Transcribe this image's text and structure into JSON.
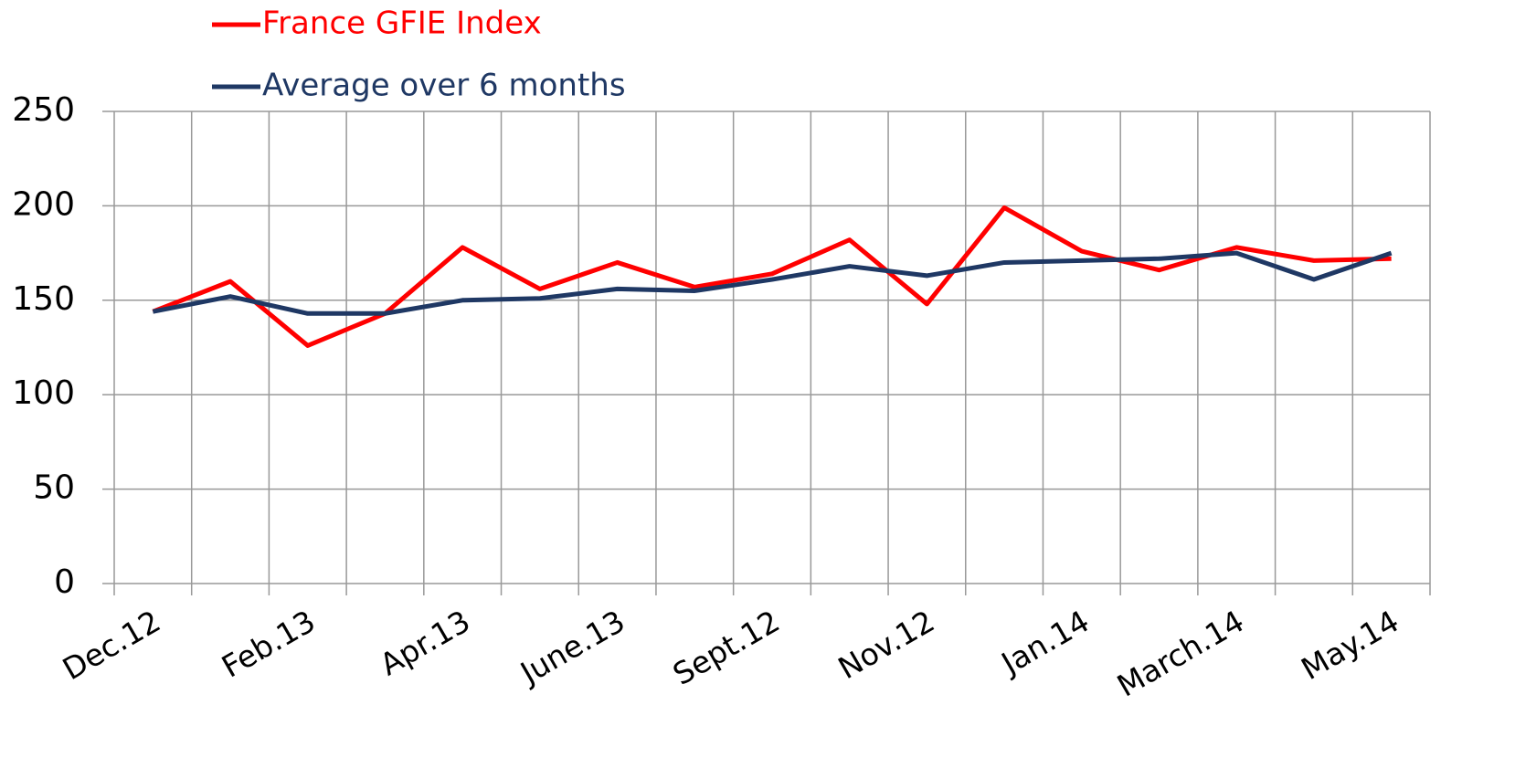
{
  "chart_data": {
    "type": "line",
    "categories": [
      "Dec.12",
      null,
      "Feb.13",
      null,
      "Apr.13",
      null,
      "June.13",
      null,
      "Sept.12",
      null,
      "Nov.12",
      null,
      "Jan.14",
      null,
      "March.14",
      null,
      "May.14"
    ],
    "series": [
      {
        "name": "France GFIE Index",
        "color": "#ff0000",
        "values": [
          144,
          160,
          126,
          143,
          178,
          156,
          170,
          157,
          164,
          182,
          148,
          199,
          176,
          166,
          178,
          171,
          172
        ]
      },
      {
        "name": "Average over 6 months",
        "color": "#1f3864",
        "values": [
          144,
          152,
          143,
          143,
          150,
          151,
          156,
          155,
          161,
          168,
          163,
          170,
          171,
          172,
          175,
          161,
          175
        ]
      }
    ],
    "ylim": [
      0,
      250
    ],
    "yticks": [
      0,
      50,
      100,
      150,
      200,
      250
    ],
    "grid": true
  }
}
